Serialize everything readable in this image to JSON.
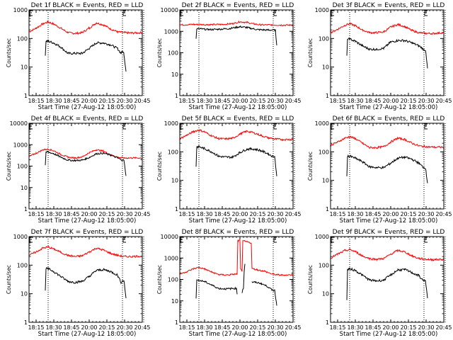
{
  "chart_data": [
    {
      "type": "line",
      "title": "Det 1f BLACK = Events, RED = LLD",
      "xlabel": "Start Time (27-Aug-12 18:05:00)",
      "ylabel": "Counts/sec",
      "yscale": "log",
      "ylim": [
        1,
        1000
      ],
      "yticks": [
        "1",
        "10",
        "100",
        "1000"
      ],
      "xlim_min": [
        0,
        160
      ],
      "xticks": [
        "18:15",
        "18:30",
        "18:45",
        "20:00",
        "20:15",
        "20:30",
        "20:45"
      ],
      "vlines_min": [
        27,
        132,
        162
      ],
      "series": [
        {
          "name": "LLD",
          "color": "#ff0000",
          "x": [
            0,
            10,
            20,
            27,
            35,
            45,
            55,
            65,
            75,
            85,
            95,
            105,
            115,
            125,
            135,
            145,
            160
          ],
          "y": [
            170,
            230,
            330,
            380,
            320,
            230,
            160,
            150,
            160,
            230,
            350,
            300,
            220,
            170,
            160,
            155,
            160
          ]
        },
        {
          "name": "Events",
          "color": "#000000",
          "x": [
            23,
            24,
            27,
            35,
            45,
            55,
            65,
            75,
            85,
            95,
            105,
            115,
            125,
            130,
            132,
            134,
            137
          ],
          "y": [
            25,
            80,
            80,
            70,
            50,
            30,
            30,
            30,
            45,
            70,
            70,
            60,
            45,
            30,
            35,
            30,
            7
          ]
        }
      ]
    },
    {
      "type": "line",
      "title": "Det 2f BLACK = Events, RED = LLD",
      "xlabel": "Start Time (27-Aug-12 18:05:00)",
      "ylabel": "Counts/sec",
      "yscale": "log",
      "ylim": [
        1,
        10000
      ],
      "yticks": [
        "1",
        "10",
        "100",
        "1000",
        "10000"
      ],
      "xlim_min": [
        0,
        160
      ],
      "xticks": [
        "18:15",
        "18:30",
        "18:45",
        "20:00",
        "20:15",
        "20:30",
        "20:45"
      ],
      "vlines_min": [
        27,
        132,
        162
      ],
      "series": [
        {
          "name": "LLD",
          "color": "#ff0000",
          "x": [
            0,
            20,
            40,
            60,
            75,
            85,
            95,
            105,
            115,
            130,
            145,
            160
          ],
          "y": [
            2000,
            2100,
            2050,
            2100,
            2300,
            2800,
            2600,
            2200,
            2000,
            2000,
            1950,
            1950
          ]
        },
        {
          "name": "Events",
          "color": "#000000",
          "x": [
            23,
            24,
            30,
            40,
            55,
            70,
            85,
            95,
            110,
            125,
            135,
            137
          ],
          "y": [
            450,
            1300,
            1300,
            1200,
            1250,
            1350,
            1650,
            1500,
            1200,
            1150,
            1150,
            220
          ]
        }
      ]
    },
    {
      "type": "line",
      "title": "Det 3f BLACK = Events, RED = LLD",
      "xlabel": "Start Time (27-Aug-12 18:05:00)",
      "ylabel": "Counts/sec",
      "yscale": "log",
      "ylim": [
        1,
        1000
      ],
      "yticks": [
        "1",
        "10",
        "100",
        "1000"
      ],
      "xlim_min": [
        0,
        160
      ],
      "xticks": [
        "18:15",
        "18:30",
        "18:45",
        "20:00",
        "20:15",
        "20:30",
        "20:45"
      ],
      "vlines_min": [
        27,
        132,
        162
      ],
      "series": [
        {
          "name": "LLD",
          "color": "#ff0000",
          "x": [
            0,
            10,
            20,
            27,
            35,
            45,
            55,
            65,
            75,
            85,
            95,
            105,
            115,
            125,
            135,
            145,
            160
          ],
          "y": [
            160,
            210,
            290,
            330,
            280,
            200,
            160,
            160,
            170,
            250,
            310,
            260,
            190,
            160,
            150,
            150,
            160
          ]
        },
        {
          "name": "Events",
          "color": "#000000",
          "x": [
            23,
            24,
            27,
            35,
            45,
            55,
            65,
            75,
            85,
            95,
            105,
            115,
            125,
            130,
            132,
            134,
            137
          ],
          "y": [
            25,
            95,
            95,
            80,
            55,
            42,
            42,
            45,
            75,
            85,
            85,
            70,
            55,
            45,
            40,
            40,
            9
          ]
        }
      ]
    },
    {
      "type": "line",
      "title": "Det 4f BLACK = Events, RED = LLD",
      "xlabel": "Start Time (27-Aug-12 18:05:00)",
      "ylabel": "Counts/sec",
      "yscale": "log",
      "ylim": [
        1,
        10000
      ],
      "yticks": [
        "1",
        "10",
        "100",
        "1000",
        "10000"
      ],
      "xlim_min": [
        0,
        160
      ],
      "xticks": [
        "18:15",
        "18:30",
        "18:45",
        "20:00",
        "20:15",
        "20:30",
        "20:45"
      ],
      "vlines_min": [
        27,
        132,
        162
      ],
      "series": [
        {
          "name": "LLD",
          "color": "#ff0000",
          "x": [
            0,
            10,
            20,
            27,
            35,
            45,
            55,
            65,
            75,
            85,
            95,
            105,
            115,
            125,
            135,
            145,
            160
          ],
          "y": [
            280,
            400,
            580,
            620,
            520,
            350,
            260,
            240,
            270,
            420,
            580,
            500,
            340,
            260,
            240,
            240,
            240
          ]
        },
        {
          "name": "Events",
          "color": "#000000",
          "x": [
            23,
            24,
            27,
            35,
            45,
            55,
            65,
            75,
            85,
            95,
            105,
            115,
            125,
            130,
            132,
            134,
            137
          ],
          "y": [
            110,
            450,
            450,
            380,
            260,
            190,
            180,
            190,
            250,
            380,
            400,
            330,
            240,
            200,
            190,
            190,
            35
          ]
        }
      ]
    },
    {
      "type": "line",
      "title": "Det 5f BLACK = Events, RED = LLD",
      "xlabel": "Start Time (27-Aug-12 18:05:00)",
      "ylabel": "Counts/sec",
      "yscale": "log",
      "ylim": [
        1,
        1000
      ],
      "yticks": [
        "1",
        "10",
        "100",
        "1000"
      ],
      "xlim_min": [
        0,
        160
      ],
      "xticks": [
        "18:15",
        "18:30",
        "18:45",
        "20:00",
        "20:15",
        "20:30",
        "20:45"
      ],
      "vlines_min": [
        27,
        132,
        162
      ],
      "series": [
        {
          "name": "LLD",
          "color": "#ff0000",
          "x": [
            0,
            10,
            20,
            27,
            35,
            45,
            55,
            65,
            75,
            85,
            95,
            105,
            115,
            125,
            135,
            145,
            160
          ],
          "y": [
            290,
            380,
            520,
            580,
            500,
            360,
            290,
            280,
            300,
            420,
            530,
            460,
            370,
            310,
            280,
            270,
            270
          ]
        },
        {
          "name": "Events",
          "color": "#000000",
          "x": [
            23,
            24,
            27,
            35,
            45,
            55,
            65,
            75,
            85,
            95,
            105,
            115,
            125,
            130,
            132,
            134,
            137
          ],
          "y": [
            30,
            150,
            150,
            130,
            100,
            70,
            65,
            65,
            95,
            125,
            125,
            110,
            85,
            70,
            70,
            70,
            14
          ]
        }
      ]
    },
    {
      "type": "line",
      "title": "Det 6f BLACK = Events, RED = LLD",
      "xlabel": "Start Time (27-Aug-12 18:05:00)",
      "ylabel": "Counts/sec",
      "yscale": "log",
      "ylim": [
        1,
        1000
      ],
      "yticks": [
        "1",
        "10",
        "100",
        "1000"
      ],
      "xlim_min": [
        0,
        160
      ],
      "xticks": [
        "18:15",
        "18:30",
        "18:45",
        "20:00",
        "20:15",
        "20:30",
        "20:45"
      ],
      "vlines_min": [
        27,
        132,
        162
      ],
      "series": [
        {
          "name": "LLD",
          "color": "#ff0000",
          "x": [
            0,
            10,
            20,
            27,
            35,
            45,
            55,
            65,
            75,
            85,
            95,
            105,
            115,
            125,
            135,
            145,
            160
          ],
          "y": [
            170,
            220,
            300,
            340,
            290,
            200,
            140,
            140,
            150,
            220,
            300,
            270,
            200,
            160,
            150,
            145,
            145
          ]
        },
        {
          "name": "Events",
          "color": "#000000",
          "x": [
            23,
            24,
            27,
            35,
            45,
            55,
            65,
            75,
            85,
            95,
            105,
            115,
            125,
            130,
            132,
            134,
            137
          ],
          "y": [
            14,
            70,
            70,
            60,
            45,
            30,
            28,
            28,
            40,
            60,
            65,
            55,
            40,
            30,
            28,
            28,
            8
          ]
        }
      ]
    },
    {
      "type": "line",
      "title": "Det 7f BLACK = Events, RED = LLD",
      "xlabel": "Start Time (27-Aug-12 18:05:00)",
      "ylabel": "Counts/sec",
      "yscale": "log",
      "ylim": [
        1,
        1000
      ],
      "yticks": [
        "1",
        "10",
        "100",
        "1000"
      ],
      "xlim_min": [
        0,
        160
      ],
      "xticks": [
        "18:15",
        "18:30",
        "18:45",
        "20:00",
        "20:15",
        "20:30",
        "20:45"
      ],
      "vlines_min": [
        27,
        132,
        162
      ],
      "series": [
        {
          "name": "LLD",
          "color": "#ff0000",
          "x": [
            0,
            10,
            20,
            27,
            35,
            45,
            55,
            65,
            75,
            85,
            95,
            105,
            115,
            125,
            135,
            145,
            160
          ],
          "y": [
            220,
            290,
            400,
            430,
            370,
            280,
            220,
            200,
            210,
            290,
            390,
            340,
            260,
            220,
            200,
            200,
            210
          ]
        },
        {
          "name": "Events",
          "color": "#000000",
          "x": [
            23,
            24,
            27,
            35,
            45,
            55,
            65,
            75,
            85,
            95,
            105,
            115,
            125,
            130,
            132,
            134,
            137
          ],
          "y": [
            13,
            75,
            75,
            60,
            40,
            27,
            25,
            27,
            40,
            65,
            70,
            60,
            45,
            25,
            28,
            30,
            7
          ]
        }
      ]
    },
    {
      "type": "line",
      "title": "Det 8f BLACK = Events, RED = LLD",
      "xlabel": "Start Time (27-Aug-12 18:05:00)",
      "ylabel": "Counts/sec",
      "yscale": "log",
      "ylim": [
        1,
        10000
      ],
      "yticks": [
        "1",
        "10",
        "100",
        "1000",
        "10000"
      ],
      "xlim_min": [
        0,
        160
      ],
      "xticks": [
        "18:15",
        "18:30",
        "18:45",
        "20:00",
        "20:15",
        "20:30",
        "20:45"
      ],
      "vlines_min": [
        27,
        132,
        162
      ],
      "series": [
        {
          "name": "LLD",
          "color": "#ff0000",
          "x": [
            0,
            10,
            20,
            27,
            35,
            45,
            55,
            65,
            75,
            81,
            82,
            85,
            86,
            88,
            89,
            92,
            101,
            102,
            110,
            120,
            130,
            140,
            150,
            160
          ],
          "y": [
            180,
            230,
            320,
            360,
            310,
            220,
            170,
            160,
            170,
            180,
            6500,
            6500,
            300,
            250,
            6000,
            6000,
            5000,
            320,
            280,
            240,
            180,
            160,
            160,
            165
          ]
        },
        {
          "name": "Events",
          "color": "#000000",
          "x": [
            23,
            24,
            27,
            35,
            45,
            55,
            65,
            75,
            80,
            81,
            82,
            88,
            89,
            90,
            91,
            92,
            93,
            101,
            102,
            105,
            115,
            125,
            130,
            132,
            134,
            137
          ],
          "y": [
            13,
            90,
            90,
            80,
            55,
            38,
            36,
            38,
            38,
            20,
            null,
            25,
            35,
            40,
            250,
            550,
            null,
            null,
            75,
            75,
            65,
            45,
            32,
            32,
            32,
            6
          ]
        }
      ]
    },
    {
      "type": "line",
      "title": "Det 9f BLACK = Events, RED = LLD",
      "xlabel": "Start Time (27-Aug-12 18:05:00)",
      "ylabel": "Counts/sec",
      "yscale": "log",
      "ylim": [
        1,
        1000
      ],
      "yticks": [
        "1",
        "10",
        "100",
        "1000"
      ],
      "xlim_min": [
        0,
        160
      ],
      "xticks": [
        "18:15",
        "18:30",
        "18:45",
        "20:00",
        "20:15",
        "20:30",
        "20:45"
      ],
      "vlines_min": [
        27,
        132,
        162
      ],
      "series": [
        {
          "name": "LLD",
          "color": "#ff0000",
          "x": [
            0,
            10,
            20,
            27,
            35,
            45,
            55,
            65,
            75,
            85,
            95,
            105,
            115,
            125,
            135,
            145,
            160
          ],
          "y": [
            180,
            240,
            320,
            350,
            300,
            210,
            170,
            160,
            170,
            240,
            330,
            290,
            210,
            170,
            160,
            155,
            160
          ]
        },
        {
          "name": "Events",
          "color": "#000000",
          "x": [
            23,
            24,
            27,
            35,
            45,
            55,
            65,
            75,
            85,
            95,
            105,
            115,
            125,
            130,
            132,
            134,
            137
          ],
          "y": [
            6,
            70,
            75,
            65,
            45,
            30,
            28,
            30,
            45,
            68,
            70,
            55,
            42,
            30,
            30,
            28,
            7
          ]
        }
      ]
    }
  ]
}
